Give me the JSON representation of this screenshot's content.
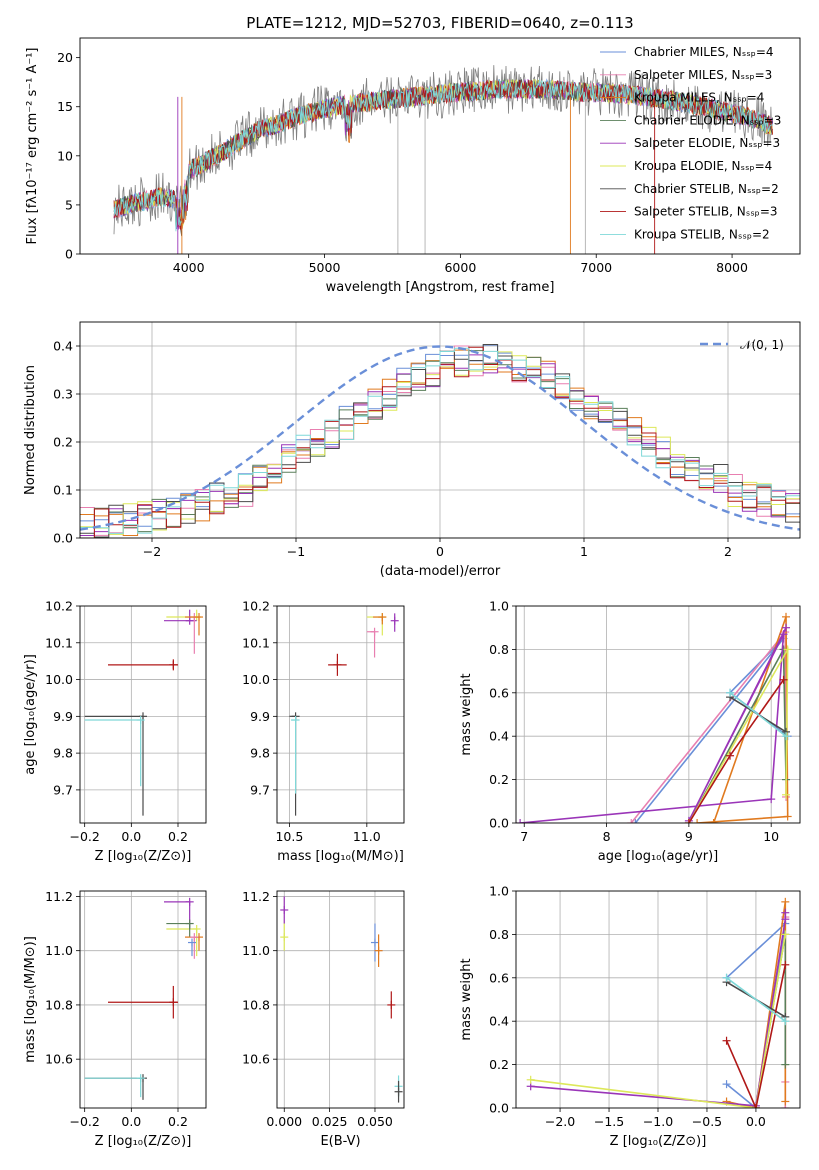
{
  "figure": {
    "title": "PLATE=1212, MJD=52703, FIBERID=0640, z=0.113"
  },
  "colors": {
    "Chabrier MILES": "#6a8fd8",
    "Salpeter MILES": "#e87fb0",
    "Kroupa MILES": "#e07a1f",
    "Chabrier ELODIE": "#5a7f5a",
    "Salpeter ELODIE": "#9a35b8",
    "Kroupa ELODIE": "#dde85a",
    "Chabrier STELIB": "#4a4a4a",
    "Salpeter STELIB": "#b01818",
    "Kroupa STELIB": "#7fd8d8",
    "data": "#7f7f7f",
    "normal": "#6a8fd8"
  },
  "chart_data": [
    {
      "id": "spectrum",
      "type": "line",
      "xlabel": "wavelength [Angstrom, rest frame]",
      "ylabel": "Flux [fλ10⁻¹⁷ erg cm⁻² s⁻¹ A⁻¹]",
      "xlim": [
        3200,
        8500
      ],
      "ylim": [
        0,
        22
      ],
      "xticks": [
        4000,
        5000,
        6000,
        7000,
        8000
      ],
      "yticks": [
        0,
        5,
        10,
        15,
        20
      ],
      "grid": false,
      "legend_position": "top-right",
      "legend": [
        "Chabrier MILES, N_SSP=4",
        "Salpeter MILES, N_SSP=3",
        "Kroupa MILES, N_SSP=4",
        "Chabrier ELODIE, N_SSP=3",
        "Salpeter ELODIE, N_SSP=3",
        "Kroupa ELODIE, N_SSP=4",
        "Chabrier STELIB, N_SSP=2",
        "Salpeter STELIB, N_SSP=3",
        "Kroupa STELIB, N_SSP=2"
      ],
      "continuum": {
        "x": [
          3450,
          3600,
          3800,
          3950,
          4000,
          4200,
          4500,
          4800,
          5000,
          5200,
          5500,
          5800,
          6000,
          6300,
          6600,
          6900,
          7200,
          7500,
          7800,
          8100,
          8300
        ],
        "y": [
          4.5,
          5.2,
          5.8,
          5.5,
          8.5,
          10.0,
          12.5,
          14.0,
          14.8,
          15.3,
          15.8,
          16.2,
          16.5,
          16.8,
          16.8,
          16.5,
          16.3,
          15.8,
          15.0,
          14.0,
          13.0
        ]
      }
    },
    {
      "id": "residuals",
      "type": "line",
      "xlabel": "(data-model)/error",
      "ylabel": "Normed distribution",
      "xlim": [
        -2.5,
        2.5
      ],
      "ylim": [
        0,
        0.45
      ],
      "xticks": [
        -2,
        -1,
        0,
        1,
        2
      ],
      "yticks": [
        0.0,
        0.1,
        0.2,
        0.3,
        0.4
      ],
      "grid": true,
      "legend_position": "top-right",
      "legend": [
        "𝒩(0, 1)"
      ],
      "hist_bins": {
        "start": -2.5,
        "step": 0.1,
        "count": 50
      },
      "hist_envelope": [
        0.03,
        0.03,
        0.035,
        0.04,
        0.045,
        0.05,
        0.055,
        0.06,
        0.07,
        0.08,
        0.09,
        0.1,
        0.12,
        0.14,
        0.16,
        0.18,
        0.2,
        0.22,
        0.24,
        0.26,
        0.28,
        0.3,
        0.32,
        0.34,
        0.35,
        0.36,
        0.37,
        0.37,
        0.375,
        0.37,
        0.36,
        0.35,
        0.34,
        0.32,
        0.3,
        0.28,
        0.26,
        0.24,
        0.22,
        0.2,
        0.18,
        0.16,
        0.14,
        0.13,
        0.12,
        0.1,
        0.09,
        0.08,
        0.07,
        0.06
      ]
    },
    {
      "id": "Z-age",
      "type": "scatter",
      "xlabel": "Z [log₁₀(Z/Z⊙)]",
      "ylabel": "age  [log₁₀(age/yr)]",
      "xlim": [
        -0.22,
        0.32
      ],
      "ylim": [
        9.61,
        10.2
      ],
      "xticks": [
        -0.2,
        0.0,
        0.2
      ],
      "yticks": [
        9.7,
        9.8,
        9.9,
        10.0,
        10.1,
        10.2
      ],
      "grid": true,
      "points": [
        {
          "model": "Salpeter STELIB",
          "x": 0.18,
          "y": 10.04,
          "xerr": [
            0.28,
            0.02
          ],
          "yerr": [
            0.015,
            0.015
          ]
        },
        {
          "model": "Chabrier STELIB",
          "x": 0.05,
          "y": 9.9,
          "xerr": [
            0.25,
            0.0
          ],
          "yerr": [
            0.27,
            0.0
          ]
        },
        {
          "model": "Kroupa STELIB",
          "x": 0.04,
          "y": 9.89,
          "xerr": [
            0.24,
            0.0
          ],
          "yerr": [
            0.18,
            0.0
          ]
        },
        {
          "model": "Kroupa ELODIE",
          "x": 0.28,
          "y": 10.17,
          "xerr": [
            0.13,
            0.02
          ],
          "yerr": [
            0.0,
            0.02
          ]
        },
        {
          "model": "Salpeter ELODIE",
          "x": 0.25,
          "y": 10.16,
          "xerr": [
            0.11,
            0.03
          ],
          "yerr": [
            0.0,
            0.03
          ]
        },
        {
          "model": "Salpeter MILES",
          "x": 0.27,
          "y": 10.17,
          "xerr": [
            0.0,
            0.0
          ],
          "yerr": [
            0.1,
            0.0
          ]
        },
        {
          "model": "Kroupa MILES",
          "x": 0.29,
          "y": 10.17,
          "xerr": [
            0.06,
            0.0
          ],
          "yerr": [
            0.05,
            0.0
          ]
        }
      ]
    },
    {
      "id": "mass-age",
      "type": "scatter",
      "xlabel": "mass [log₁₀(M/M⊙)]",
      "ylabel": "",
      "xlim": [
        10.42,
        11.24
      ],
      "ylim": [
        9.61,
        10.2
      ],
      "xticks": [
        10.5,
        11.0
      ],
      "yticks": [
        9.7,
        9.8,
        9.9,
        10.0,
        10.1,
        10.2
      ],
      "grid": true,
      "points": [
        {
          "model": "Salpeter STELIB",
          "x": 10.81,
          "y": 10.04,
          "xerr": [
            0.06,
            0.06
          ],
          "yerr": [
            0.03,
            0.03
          ]
        },
        {
          "model": "Chabrier STELIB",
          "x": 10.54,
          "y": 9.9,
          "xerr": [
            0.04,
            0.0
          ],
          "yerr": [
            0.27,
            0.0
          ]
        },
        {
          "model": "Kroupa STELIB",
          "x": 10.54,
          "y": 9.89,
          "xerr": [
            0.03,
            0.0
          ],
          "yerr": [
            0.2,
            0.0
          ]
        },
        {
          "model": "Kroupa ELODIE",
          "x": 11.1,
          "y": 10.17,
          "xerr": [
            0.1,
            0.0
          ],
          "yerr": [
            0.05,
            0.0
          ]
        },
        {
          "model": "Salpeter ELODIE",
          "x": 11.18,
          "y": 10.16,
          "xerr": [
            0.0,
            0.0
          ],
          "yerr": [
            0.03,
            0.02
          ]
        },
        {
          "model": "Salpeter MILES",
          "x": 11.05,
          "y": 10.13,
          "xerr": [
            0.05,
            0.0
          ],
          "yerr": [
            0.07,
            0.0
          ]
        },
        {
          "model": "Kroupa MILES",
          "x": 11.1,
          "y": 10.17,
          "xerr": [
            0.06,
            0.0
          ],
          "yerr": [
            0.02,
            0.0
          ]
        }
      ]
    },
    {
      "id": "age-weight",
      "type": "line",
      "xlabel": "age  [log₁₀(age/yr)]",
      "ylabel": "mass weight",
      "xlim": [
        6.9,
        10.35
      ],
      "ylim": [
        0,
        1.0
      ],
      "xticks": [
        7,
        8,
        9,
        10
      ],
      "yticks": [
        0.0,
        0.2,
        0.4,
        0.6,
        0.8,
        1.0
      ],
      "grid": true,
      "series": [
        {
          "model": "Chabrier MILES",
          "x": [
            8.35,
            10.15,
            9.5,
            10.2
          ],
          "y": [
            0.0,
            0.85,
            0.6,
            0.4
          ]
        },
        {
          "model": "Salpeter MILES",
          "x": [
            8.3,
            10.17,
            10.18
          ],
          "y": [
            0.0,
            0.88,
            0.12
          ]
        },
        {
          "model": "Kroupa MILES",
          "x": [
            9.3,
            10.18,
            10.2,
            9.1
          ],
          "y": [
            0.0,
            0.95,
            0.03,
            0.0
          ]
        },
        {
          "model": "Chabrier ELODIE",
          "x": [
            9.0,
            10.15,
            10.18
          ],
          "y": [
            0.0,
            0.8,
            0.2
          ]
        },
        {
          "model": "Salpeter ELODIE",
          "x": [
            6.95,
            10.0,
            10.15,
            9.0,
            10.18
          ],
          "y": [
            0.0,
            0.11,
            0.87,
            0.01,
            0.9
          ]
        },
        {
          "model": "Kroupa ELODIE",
          "x": [
            9.0,
            10.2,
            10.18
          ],
          "y": [
            0.0,
            0.8,
            0.13
          ]
        },
        {
          "model": "Chabrier STELIB",
          "x": [
            9.5,
            10.18
          ],
          "y": [
            0.58,
            0.42
          ]
        },
        {
          "model": "Salpeter STELIB",
          "x": [
            9.0,
            9.5,
            10.15
          ],
          "y": [
            0.0,
            0.31,
            0.66
          ]
        },
        {
          "model": "Kroupa STELIB",
          "x": [
            9.5,
            10.18
          ],
          "y": [
            0.6,
            0.4
          ]
        }
      ]
    },
    {
      "id": "Z-mass",
      "type": "scatter",
      "xlabel": "Z [log₁₀(Z/Z⊙)]",
      "ylabel": "mass [log₁₀(M/M⊙)]",
      "xlim": [
        -0.22,
        0.32
      ],
      "ylim": [
        10.42,
        11.22
      ],
      "xticks": [
        -0.2,
        0.0,
        0.2
      ],
      "yticks": [
        10.6,
        10.8,
        11.0,
        11.2
      ],
      "grid": true,
      "points": [
        {
          "model": "Salpeter STELIB",
          "x": 0.18,
          "y": 10.81,
          "xerr": [
            0.28,
            0.02
          ],
          "yerr": [
            0.06,
            0.06
          ]
        },
        {
          "model": "Chabrier STELIB",
          "x": 0.05,
          "y": 10.53,
          "xerr": [
            0.25,
            0.0
          ],
          "yerr": [
            0.08,
            0.0
          ]
        },
        {
          "model": "Kroupa STELIB",
          "x": 0.04,
          "y": 10.53,
          "xerr": [
            0.24,
            0.0
          ],
          "yerr": [
            0.07,
            0.0
          ]
        },
        {
          "model": "Kroupa ELODIE",
          "x": 0.28,
          "y": 11.08,
          "xerr": [
            0.13,
            0.0
          ],
          "yerr": [
            0.1,
            0.0
          ]
        },
        {
          "model": "Salpeter ELODIE",
          "x": 0.25,
          "y": 11.18,
          "xerr": [
            0.11,
            0.0
          ],
          "yerr": [
            0.1,
            0.0
          ]
        },
        {
          "model": "Chabrier ELODIE",
          "x": 0.25,
          "y": 11.1,
          "xerr": [
            0.1,
            0.0
          ],
          "yerr": [
            0.05,
            0.0
          ]
        },
        {
          "model": "Kroupa MILES",
          "x": 0.29,
          "y": 11.05,
          "xerr": [
            0.06,
            0.0
          ],
          "yerr": [
            0.05,
            0.0
          ]
        },
        {
          "model": "Salpeter MILES",
          "x": 0.27,
          "y": 11.05,
          "xerr": [
            0.0,
            0.0
          ],
          "yerr": [
            0.08,
            0.0
          ]
        },
        {
          "model": "Chabrier MILES",
          "x": 0.26,
          "y": 11.03,
          "xerr": [
            0.0,
            0.0
          ],
          "yerr": [
            0.05,
            0.0
          ]
        }
      ]
    },
    {
      "id": "ebv-mass",
      "type": "scatter",
      "xlabel": "E(B-V)",
      "ylabel": "",
      "xlim": [
        -0.004,
        0.066
      ],
      "ylim": [
        10.42,
        11.22
      ],
      "xticks": [
        0.0,
        0.025,
        0.05
      ],
      "yticks": [
        10.6,
        10.8,
        11.0,
        11.2
      ],
      "grid": true,
      "points": [
        {
          "model": "Salpeter ELODIE",
          "x": 0.0,
          "y": 11.15,
          "yerr": [
            0.05,
            0.05
          ]
        },
        {
          "model": "Kroupa ELODIE",
          "x": 0.0,
          "y": 11.05,
          "yerr": [
            0.05,
            0.05
          ]
        },
        {
          "model": "Chabrier MILES",
          "x": 0.05,
          "y": 11.03,
          "yerr": [
            0.07,
            0.07
          ]
        },
        {
          "model": "Kroupa MILES",
          "x": 0.052,
          "y": 11.0,
          "yerr": [
            0.06,
            0.06
          ]
        },
        {
          "model": "Salpeter STELIB",
          "x": 0.059,
          "y": 10.8,
          "yerr": [
            0.05,
            0.05
          ]
        },
        {
          "model": "Kroupa STELIB",
          "x": 0.063,
          "y": 10.5,
          "yerr": [
            0.04,
            0.04
          ]
        },
        {
          "model": "Chabrier STELIB",
          "x": 0.063,
          "y": 10.48,
          "yerr": [
            0.04,
            0.04
          ]
        }
      ]
    },
    {
      "id": "Z-weight",
      "type": "line",
      "xlabel": "Z [log₁₀(Z/Z⊙)]",
      "ylabel": "mass weight",
      "xlim": [
        -2.45,
        0.45
      ],
      "ylim": [
        0,
        1.0
      ],
      "xticks": [
        -2.0,
        -1.5,
        -1.0,
        -0.5,
        0.0
      ],
      "yticks": [
        0.0,
        0.2,
        0.4,
        0.6,
        0.8,
        1.0
      ],
      "grid": true,
      "series": [
        {
          "model": "Chabrier MILES",
          "x": [
            -0.3,
            0.0,
            0.3,
            -0.3
          ],
          "y": [
            0.11,
            0.0,
            0.85,
            0.6
          ]
        },
        {
          "model": "Salpeter MILES",
          "x": [
            0.3,
            0.3,
            0.3
          ],
          "y": [
            0.0,
            0.88,
            0.12
          ]
        },
        {
          "model": "Kroupa MILES",
          "x": [
            -0.3,
            0.0,
            0.3,
            0.3
          ],
          "y": [
            0.03,
            0.0,
            0.95,
            0.03
          ]
        },
        {
          "model": "Chabrier ELODIE",
          "x": [
            0.0,
            0.3,
            0.3
          ],
          "y": [
            0.0,
            0.8,
            0.2
          ]
        },
        {
          "model": "Salpeter ELODIE",
          "x": [
            -2.3,
            0.0,
            0.3,
            0.3
          ],
          "y": [
            0.1,
            0.01,
            0.87,
            0.9
          ]
        },
        {
          "model": "Kroupa ELODIE",
          "x": [
            -2.3,
            0.0,
            0.3
          ],
          "y": [
            0.13,
            0.0,
            0.8
          ]
        },
        {
          "model": "Chabrier STELIB",
          "x": [
            -0.3,
            0.3
          ],
          "y": [
            0.58,
            0.42
          ]
        },
        {
          "model": "Salpeter STELIB",
          "x": [
            -0.3,
            0.0,
            0.3
          ],
          "y": [
            0.31,
            0.0,
            0.66
          ]
        },
        {
          "model": "Kroupa STELIB",
          "x": [
            -0.3,
            0.3
          ],
          "y": [
            0.6,
            0.4
          ]
        }
      ]
    }
  ]
}
